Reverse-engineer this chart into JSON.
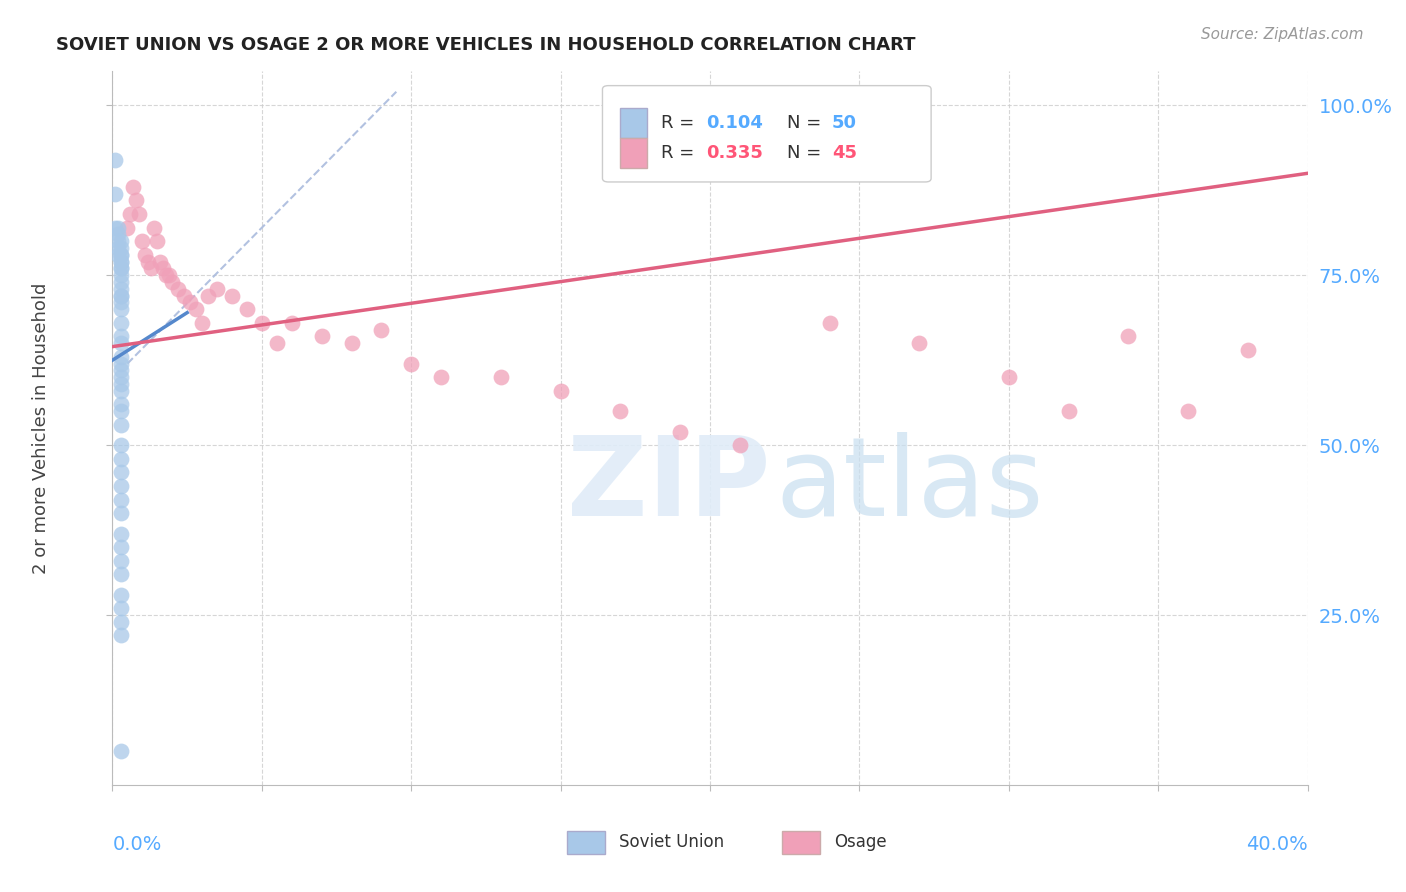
{
  "title": "SOVIET UNION VS OSAGE 2 OR MORE VEHICLES IN HOUSEHOLD CORRELATION CHART",
  "source": "Source: ZipAtlas.com",
  "ylabel": "2 or more Vehicles in Household",
  "R_blue": 0.104,
  "N_blue": 50,
  "R_pink": 0.335,
  "N_pink": 45,
  "color_blue": "#a8c8e8",
  "color_pink": "#f0a0b8",
  "color_blue_line": "#5588cc",
  "color_pink_line": "#e06080",
  "color_blue_text": "#55aaff",
  "color_pink_text": "#ff5577",
  "color_dash": "#aabbdd",
  "xlim": [
    0.0,
    0.4
  ],
  "ylim": [
    0.0,
    1.05
  ],
  "ytick_vals": [
    0.25,
    0.5,
    0.75,
    1.0
  ],
  "ytick_labels": [
    "25.0%",
    "50.0%",
    "75.0%",
    "100.0%"
  ],
  "background_color": "#ffffff",
  "grid_color": "#cccccc",
  "blue_x": [
    0.001,
    0.001,
    0.001,
    0.002,
    0.002,
    0.002,
    0.002,
    0.002,
    0.003,
    0.003,
    0.003,
    0.003,
    0.003,
    0.003,
    0.003,
    0.003,
    0.003,
    0.003,
    0.003,
    0.003,
    0.003,
    0.003,
    0.003,
    0.003,
    0.003,
    0.003,
    0.003,
    0.003,
    0.003,
    0.003,
    0.003,
    0.003,
    0.003,
    0.003,
    0.003,
    0.003,
    0.003,
    0.003,
    0.003,
    0.003,
    0.003,
    0.003,
    0.003,
    0.003,
    0.003,
    0.003,
    0.003,
    0.003,
    0.003,
    0.003
  ],
  "blue_y": [
    0.92,
    0.87,
    0.82,
    0.82,
    0.81,
    0.8,
    0.79,
    0.78,
    0.8,
    0.79,
    0.78,
    0.78,
    0.77,
    0.77,
    0.76,
    0.76,
    0.75,
    0.74,
    0.73,
    0.72,
    0.72,
    0.71,
    0.7,
    0.68,
    0.66,
    0.65,
    0.63,
    0.62,
    0.61,
    0.6,
    0.59,
    0.58,
    0.56,
    0.55,
    0.53,
    0.5,
    0.48,
    0.46,
    0.44,
    0.42,
    0.4,
    0.37,
    0.35,
    0.33,
    0.31,
    0.28,
    0.26,
    0.24,
    0.22,
    0.05
  ],
  "pink_x": [
    0.005,
    0.006,
    0.007,
    0.008,
    0.009,
    0.01,
    0.011,
    0.012,
    0.013,
    0.014,
    0.015,
    0.016,
    0.017,
    0.018,
    0.019,
    0.02,
    0.022,
    0.024,
    0.026,
    0.028,
    0.03,
    0.032,
    0.035,
    0.04,
    0.045,
    0.05,
    0.055,
    0.06,
    0.07,
    0.08,
    0.09,
    0.1,
    0.11,
    0.13,
    0.15,
    0.17,
    0.19,
    0.21,
    0.24,
    0.27,
    0.3,
    0.32,
    0.34,
    0.36,
    0.38
  ],
  "pink_y": [
    0.82,
    0.84,
    0.88,
    0.86,
    0.84,
    0.8,
    0.78,
    0.77,
    0.76,
    0.82,
    0.8,
    0.77,
    0.76,
    0.75,
    0.75,
    0.74,
    0.73,
    0.72,
    0.71,
    0.7,
    0.68,
    0.72,
    0.73,
    0.72,
    0.7,
    0.68,
    0.65,
    0.68,
    0.66,
    0.65,
    0.67,
    0.62,
    0.6,
    0.6,
    0.58,
    0.55,
    0.52,
    0.5,
    0.68,
    0.65,
    0.6,
    0.55,
    0.66,
    0.55,
    0.64
  ],
  "blue_line_x0": 0.0,
  "blue_line_x1": 0.025,
  "blue_line_y0": 0.625,
  "blue_line_y1": 0.695,
  "pink_line_x0": 0.0,
  "pink_line_x1": 0.4,
  "pink_line_y0": 0.645,
  "pink_line_y1": 0.9,
  "dash_line_x0": 0.005,
  "dash_line_x1": 0.095,
  "dash_line_y0": 0.62,
  "dash_line_y1": 1.02
}
